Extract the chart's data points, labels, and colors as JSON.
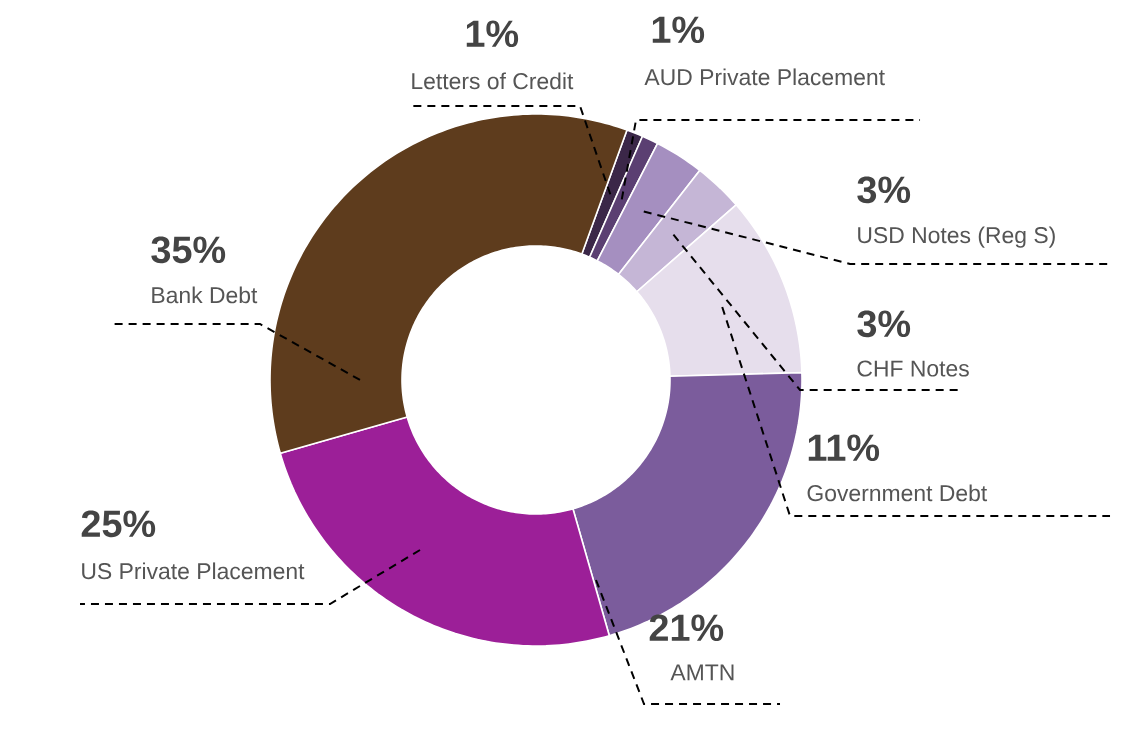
{
  "chart_data": {
    "type": "donut",
    "categories": [
      "Letters of Credit",
      "AUD Private Placement",
      "USD Notes (Reg S)",
      "CHF Notes",
      "Government Debt",
      "AMTN",
      "US Private Placement",
      "Bank Debt"
    ],
    "values": [
      1,
      1,
      3,
      3,
      11,
      21,
      25,
      35
    ],
    "value_labels": [
      "1%",
      "1%",
      "3%",
      "3%",
      "11%",
      "21%",
      "25%",
      "35%"
    ],
    "colors": [
      "#3b2748",
      "#5b3f72",
      "#a58fc0",
      "#c5b6d6",
      "#e6deec",
      "#7b5c9c",
      "#9c1f98",
      "#5e3c1d"
    ]
  }
}
